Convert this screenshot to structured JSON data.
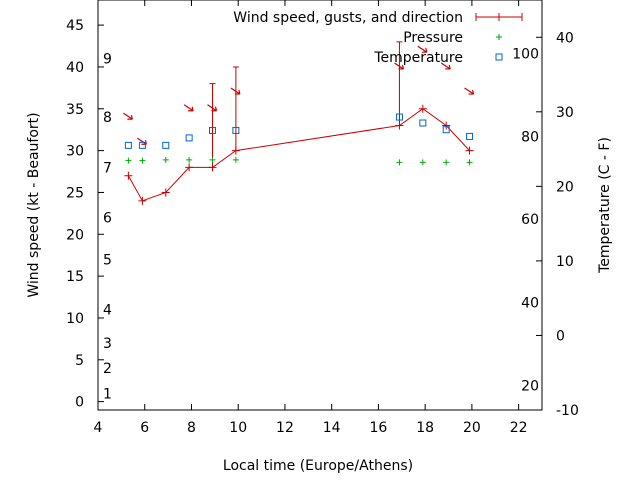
{
  "chart_data": {
    "type": "line",
    "xlabel": "Local time (Europe/Athens)",
    "ylabel_left": "Wind speed (kt - Beaufort)",
    "ylabel_right": "Temperature (C - F)",
    "x_range": [
      4,
      23
    ],
    "x_ticks": [
      "4",
      "6",
      "8",
      "10",
      "12",
      "14",
      "16",
      "18",
      "20",
      "22"
    ],
    "y_left_range": [
      -1,
      48
    ],
    "y_left_ticks": [
      "0",
      "5",
      "10",
      "15",
      "20",
      "25",
      "30",
      "35",
      "40",
      "45"
    ],
    "y_right_range": [
      -10,
      45
    ],
    "y_right_ticks": [
      "-10",
      "0",
      "10",
      "20",
      "30",
      "40"
    ],
    "beaufort_labels": [
      {
        "label": "1",
        "kt": 1
      },
      {
        "label": "2",
        "kt": 4
      },
      {
        "label": "3",
        "kt": 7
      },
      {
        "label": "4",
        "kt": 11
      },
      {
        "label": "5",
        "kt": 17
      },
      {
        "label": "6",
        "kt": 22
      },
      {
        "label": "7",
        "kt": 28
      },
      {
        "label": "8",
        "kt": 34
      },
      {
        "label": "9",
        "kt": 41
      }
    ],
    "fahrenheit_labels": [
      {
        "label": "20",
        "c": -6.7
      },
      {
        "label": "40",
        "c": 4.4
      },
      {
        "label": "60",
        "c": 15.6
      },
      {
        "label": "80",
        "c": 26.7
      },
      {
        "label": "100",
        "c": 37.8
      }
    ],
    "legend": {
      "wind": "Wind speed, gusts, and direction",
      "pressure": "Pressure",
      "temperature": "Temperature"
    },
    "legend_position": "top-right",
    "grid": false,
    "colors": {
      "wind": "#cc0000",
      "pressure": "#00aa00",
      "temperature": "#0066cc"
    },
    "series": [
      {
        "name": "Wind speed, gusts, and direction",
        "x": [
          5.3,
          5.9,
          6.9,
          7.9,
          8.9,
          9.9,
          16.9,
          17.9,
          18.9,
          19.9
        ],
        "y": [
          27,
          24,
          25,
          28,
          28,
          30,
          33,
          35,
          33,
          30
        ],
        "gusts": [
          null,
          null,
          null,
          null,
          38,
          40,
          43,
          null,
          null,
          null
        ],
        "direction_arrows": [
          true,
          true,
          false,
          true,
          true,
          true,
          true,
          true,
          true,
          true
        ]
      },
      {
        "name": "Pressure",
        "x": [
          5.3,
          5.9,
          6.9,
          7.9,
          8.9,
          9.9,
          16.9,
          17.9,
          18.9,
          19.9
        ],
        "y": [
          28.8,
          28.8,
          28.9,
          28.9,
          28.9,
          28.9,
          28.6,
          28.6,
          28.6,
          28.6
        ]
      },
      {
        "name": "Temperature",
        "x": [
          5.3,
          5.9,
          6.9,
          7.9,
          8.9,
          9.9,
          16.9,
          17.9,
          18.9,
          19.9
        ],
        "y": [
          25.5,
          25.5,
          25.5,
          26.5,
          27.5,
          27.5,
          29.3,
          28.5,
          27.6,
          26.7
        ]
      }
    ]
  }
}
